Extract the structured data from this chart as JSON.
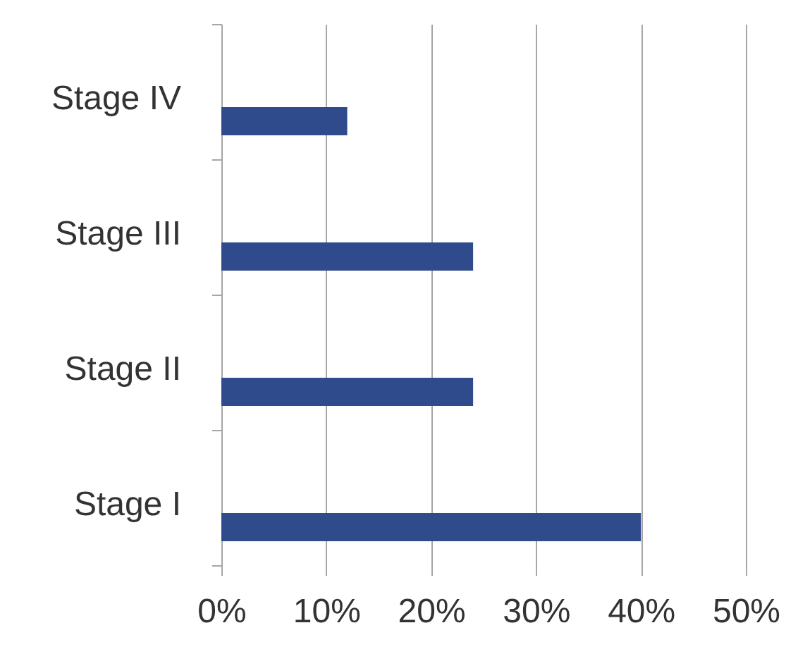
{
  "chart_data": {
    "type": "bar",
    "orientation": "horizontal",
    "categories": [
      "Stage IV",
      "Stage III",
      "Stage II",
      "Stage I"
    ],
    "values": [
      12,
      24,
      24,
      40
    ],
    "color": "#2f4b8c",
    "xlim": [
      0,
      50
    ],
    "xticks": [
      {
        "value": 0,
        "label": "0%"
      },
      {
        "value": 10,
        "label": "10%"
      },
      {
        "value": 20,
        "label": "20%"
      },
      {
        "value": 30,
        "label": "30%"
      },
      {
        "value": 40,
        "label": "40%"
      },
      {
        "value": 50,
        "label": "50%"
      }
    ],
    "grid": "x"
  }
}
